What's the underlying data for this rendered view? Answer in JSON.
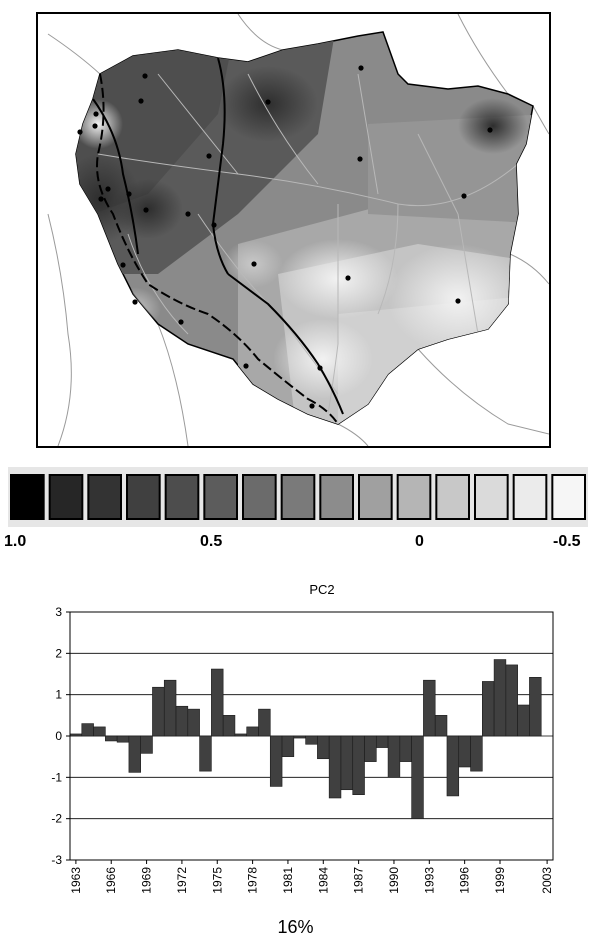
{
  "legend": {
    "swatch_colors": [
      "#000000",
      "#262626",
      "#333333",
      "#404040",
      "#4d4d4d",
      "#5c5c5c",
      "#6b6b6b",
      "#7a7a7a",
      "#8c8c8c",
      "#a0a0a0",
      "#b5b5b5",
      "#c8c8c8",
      "#dadada",
      "#ebebeb",
      "#f6f6f6"
    ],
    "labels": [
      "1.0",
      "0.5",
      "0",
      "-0.5"
    ]
  },
  "map": {
    "station_count": 26
  },
  "chart_data": {
    "type": "bar",
    "title": "PC2",
    "xlabel": "",
    "ylabel": "",
    "ylim": [
      -3,
      3
    ],
    "yticks": [
      -3,
      -2,
      -1,
      0,
      1,
      2,
      3
    ],
    "grid": true,
    "bar_color": "#404040",
    "x": [
      1963,
      1964,
      1965,
      1966,
      1967,
      1968,
      1969,
      1970,
      1971,
      1972,
      1973,
      1974,
      1975,
      1976,
      1977,
      1978,
      1979,
      1980,
      1981,
      1982,
      1983,
      1984,
      1985,
      1986,
      1987,
      1988,
      1989,
      1990,
      1991,
      1992,
      1993,
      1994,
      1995,
      1996,
      1997,
      1998,
      1999,
      2000,
      2001,
      2002,
      2003
    ],
    "values": [
      0.05,
      0.3,
      0.22,
      -0.12,
      -0.15,
      -0.88,
      -0.42,
      1.18,
      1.35,
      0.72,
      0.65,
      -0.85,
      1.62,
      0.5,
      0.05,
      0.22,
      0.65,
      -1.22,
      -0.5,
      -0.05,
      -0.2,
      -0.55,
      -1.5,
      -1.3,
      -1.42,
      -0.62,
      -0.28,
      -1.0,
      -0.62,
      -2.0,
      1.35,
      0.5,
      -1.45,
      -0.75,
      -0.85,
      1.32,
      1.85,
      1.72,
      0.75,
      1.42,
      0
    ],
    "tick_labels": [
      "1963",
      "1966",
      "1969",
      "1972",
      "1975",
      "1978",
      "1981",
      "1984",
      "1987",
      "1990",
      "1993",
      "1996",
      "1999",
      "2003"
    ]
  },
  "caption": "16%"
}
